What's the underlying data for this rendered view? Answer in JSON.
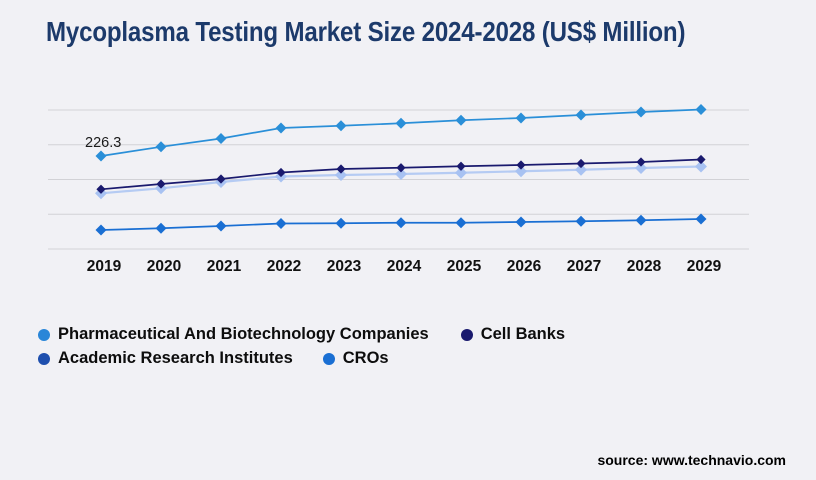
{
  "title": "Mycoplasma Testing Market Size 2024-2028 (US$ Million)",
  "source": {
    "text": "source: www.technavio.com"
  },
  "colors": {
    "background": "#f1f1f5",
    "title": "#1c3a6b",
    "gridline": "#d2d2d6",
    "axis_label": "#111111",
    "annotation": "#1a1a1a"
  },
  "chart_data": {
    "type": "line",
    "title": "Mycoplasma Testing Market Size 2024-2028 (US$ Million)",
    "x": [
      2019,
      2020,
      2021,
      2022,
      2023,
      2024,
      2025,
      2026,
      2027,
      2028,
      2029
    ],
    "series": [
      {
        "name": "Pharmaceutical And Biotechnology Companies",
        "line_color": "#2a8fd8",
        "marker_color": "#2a8fd8",
        "legend_color": "#2a86d8",
        "values": [
          226.3,
          239.2,
          250.8,
          265.5,
          268.7,
          272.1,
          276.3,
          279.5,
          283.7,
          287.9,
          291.4
        ]
      },
      {
        "name": "Cell Banks",
        "line_color": "#1a1a6e",
        "marker_color": "#1a1a6e",
        "legend_color": "#1a1a6e",
        "values": [
          179.7,
          187.1,
          194.1,
          203.2,
          208.1,
          209.9,
          211.9,
          213.7,
          215.8,
          217.9,
          221.4
        ]
      },
      {
        "name": "Academic Research Institutes",
        "line_color": "#b5cbf3",
        "marker_color": "#a8c2f2",
        "legend_color": "#1e4fae",
        "values": [
          174.1,
          181.1,
          189.9,
          197.6,
          199.7,
          201.1,
          202.9,
          204.9,
          207.1,
          209.5,
          211.6
        ]
      },
      {
        "name": "CROs",
        "line_color": "#1a6fd3",
        "marker_color": "#1a6fd3",
        "legend_color": "#1a6fd3",
        "values": [
          122.7,
          125.1,
          128.3,
          131.8,
          132.1,
          132.9,
          132.9,
          133.9,
          134.9,
          136.3,
          138.1
        ]
      }
    ],
    "ylim": [
      96.1,
      290.7
    ],
    "xlabel": "",
    "ylabel": "",
    "grid": "horizontal",
    "gridline_count": 5,
    "legend_position": "bottom-left",
    "annotations": [
      {
        "series": "Pharmaceutical And Biotechnology Companies",
        "x": 2019,
        "label": "226.3"
      }
    ]
  }
}
